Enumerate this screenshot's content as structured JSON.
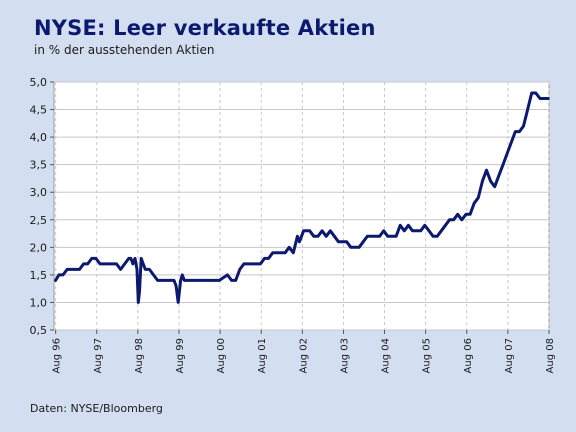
{
  "header": {
    "title": "NYSE: Leer verkaufte Aktien",
    "subtitle": "in % der ausstehenden Aktien"
  },
  "footer": {
    "source": "Daten: NYSE/Bloomberg"
  },
  "colors": {
    "background": "#d3dff0",
    "plot_background": "#ffffff",
    "line": "#0b1a6e",
    "grid": "#c8c8c8",
    "title": "#0b1a6e"
  },
  "chart_data": {
    "type": "line",
    "title": "NYSE: Leer verkaufte Aktien",
    "subtitle": "in % der ausstehenden Aktien",
    "xlabel": "",
    "ylabel": "",
    "xlim": [
      1996.58,
      2008.62
    ],
    "ylim": [
      0.5,
      5.0
    ],
    "grid": true,
    "legend": "none",
    "y_ticks": [
      "0,5",
      "1,0",
      "1,5",
      "2,0",
      "2,5",
      "3,0",
      "3,5",
      "4,0",
      "4,5",
      "5,0"
    ],
    "y_tick_values": [
      0.5,
      1.0,
      1.5,
      2.0,
      2.5,
      3.0,
      3.5,
      4.0,
      4.5,
      5.0
    ],
    "x_ticks": [
      "Aug 96",
      "Aug 97",
      "Aug 98",
      "Aug 99",
      "Aug 00",
      "Aug 01",
      "Aug 02",
      "Aug 03",
      "Aug 04",
      "Aug 05",
      "Aug 06",
      "Aug 07",
      "Aug 08"
    ],
    "x_tick_values": [
      1996.62,
      1997.62,
      1998.62,
      1999.62,
      2000.62,
      2001.62,
      2002.62,
      2003.62,
      2004.62,
      2005.62,
      2006.62,
      2007.62,
      2008.62
    ],
    "series": [
      {
        "x": [
          1996.62,
          1996.7,
          1996.8,
          1996.9,
          1997.0,
          1997.1,
          1997.2,
          1997.3,
          1997.4,
          1997.5,
          1997.6,
          1997.7,
          1997.8,
          1997.9,
          1998.0,
          1998.1,
          1998.2,
          1998.3,
          1998.4,
          1998.45,
          1998.5,
          1998.55,
          1998.6,
          1998.63,
          1998.66,
          1998.7,
          1998.75,
          1998.8,
          1998.9,
          1999.0,
          1999.1,
          1999.2,
          1999.3,
          1999.4,
          1999.5,
          1999.55,
          1999.6,
          1999.63,
          1999.66,
          1999.7,
          1999.75,
          1999.8,
          1999.9,
          2000.0,
          2000.2,
          2000.4,
          2000.6,
          2000.8,
          2000.9,
          2001.0,
          2001.1,
          2001.2,
          2001.3,
          2001.4,
          2001.5,
          2001.6,
          2001.7,
          2001.8,
          2001.9,
          2002.0,
          2002.1,
          2002.2,
          2002.3,
          2002.4,
          2002.5,
          2002.55,
          2002.6,
          2002.65,
          2002.7,
          2002.8,
          2002.9,
          2003.0,
          2003.1,
          2003.2,
          2003.3,
          2003.4,
          2003.5,
          2003.6,
          2003.7,
          2003.8,
          2003.9,
          2004.0,
          2004.1,
          2004.2,
          2004.3,
          2004.4,
          2004.5,
          2004.6,
          2004.7,
          2004.8,
          2004.9,
          2005.0,
          2005.1,
          2005.2,
          2005.3,
          2005.4,
          2005.5,
          2005.6,
          2005.7,
          2005.8,
          2005.9,
          2006.0,
          2006.1,
          2006.2,
          2006.3,
          2006.4,
          2006.5,
          2006.6,
          2006.7,
          2006.8,
          2006.9,
          2007.0,
          2007.1,
          2007.2,
          2007.3,
          2007.4,
          2007.5,
          2007.6,
          2007.7,
          2007.8,
          2007.9,
          2008.0,
          2008.1,
          2008.2,
          2008.3,
          2008.4,
          2008.5,
          2008.55,
          2008.6
        ],
        "values": [
          1.4,
          1.5,
          1.5,
          1.6,
          1.6,
          1.6,
          1.6,
          1.7,
          1.7,
          1.8,
          1.8,
          1.7,
          1.7,
          1.7,
          1.7,
          1.7,
          1.6,
          1.7,
          1.8,
          1.8,
          1.7,
          1.8,
          1.6,
          1.0,
          1.2,
          1.8,
          1.7,
          1.6,
          1.6,
          1.5,
          1.4,
          1.4,
          1.4,
          1.4,
          1.4,
          1.3,
          1.0,
          1.2,
          1.4,
          1.5,
          1.4,
          1.4,
          1.4,
          1.4,
          1.4,
          1.4,
          1.4,
          1.5,
          1.4,
          1.4,
          1.6,
          1.7,
          1.7,
          1.7,
          1.7,
          1.7,
          1.8,
          1.8,
          1.9,
          1.9,
          1.9,
          1.9,
          2.0,
          1.9,
          2.2,
          2.1,
          2.2,
          2.3,
          2.3,
          2.3,
          2.2,
          2.2,
          2.3,
          2.2,
          2.3,
          2.2,
          2.1,
          2.1,
          2.1,
          2.0,
          2.0,
          2.0,
          2.1,
          2.2,
          2.2,
          2.2,
          2.2,
          2.3,
          2.2,
          2.2,
          2.2,
          2.4,
          2.3,
          2.4,
          2.3,
          2.3,
          2.3,
          2.4,
          2.3,
          2.2,
          2.2,
          2.3,
          2.4,
          2.5,
          2.5,
          2.6,
          2.5,
          2.6,
          2.6,
          2.8,
          2.9,
          3.2,
          3.4,
          3.2,
          3.1,
          3.3,
          3.5,
          3.7,
          3.9,
          4.1,
          4.1,
          4.2,
          4.5,
          4.8,
          4.8,
          4.7,
          4.7,
          4.7,
          4.7
        ]
      }
    ]
  }
}
